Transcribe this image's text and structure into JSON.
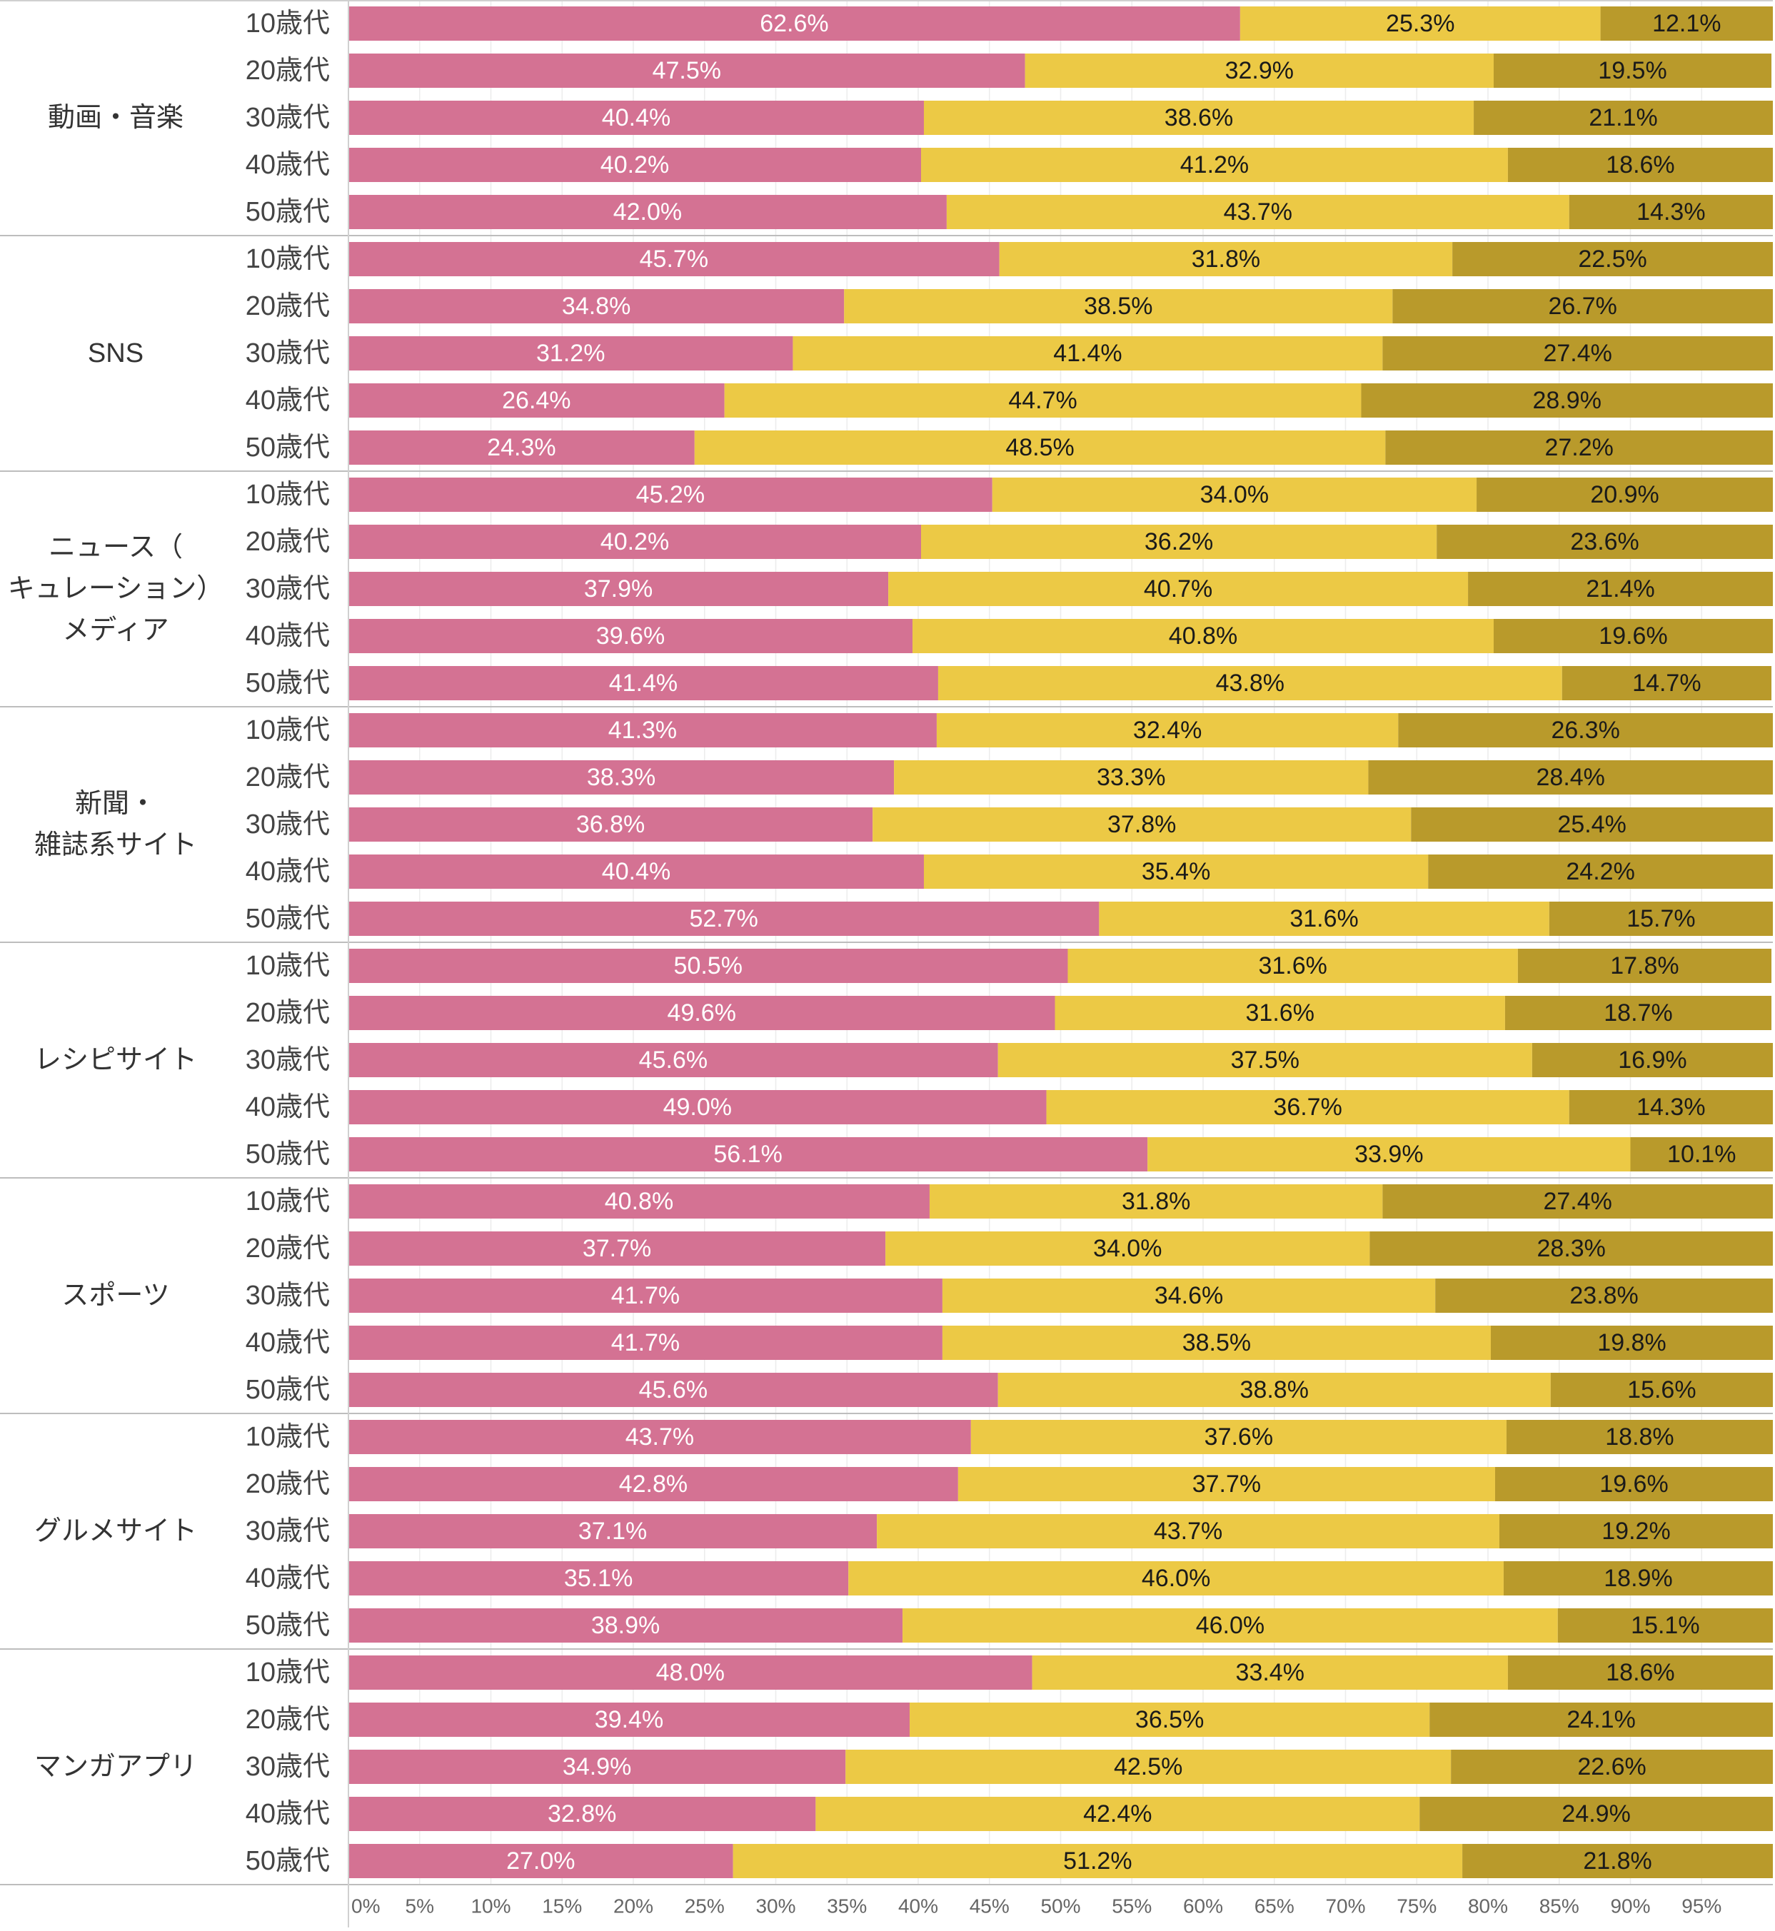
{
  "chart_data": {
    "type": "bar",
    "orientation": "horizontal",
    "stacked": true,
    "x_tick_labels": [
      "0%",
      "5%",
      "10%",
      "15%",
      "20%",
      "25%",
      "30%",
      "35%",
      "40%",
      "45%",
      "50%",
      "55%",
      "60%",
      "65%",
      "70%",
      "75%",
      "80%",
      "85%",
      "90%",
      "95%"
    ],
    "xlim": [
      0,
      100
    ],
    "colors": [
      "#d47293",
      "#ecc945",
      "#b99a2b"
    ],
    "label_colors": [
      "#ffffff",
      "#1a1a1a",
      "#1a1a1a"
    ],
    "groups": [
      {
        "label": "動画・音楽",
        "rows": [
          {
            "age": "10歳代",
            "values": [
              62.6,
              25.3,
              12.1
            ],
            "labels": [
              "62.6%",
              "25.3%",
              "12.1%"
            ]
          },
          {
            "age": "20歳代",
            "values": [
              47.5,
              32.9,
              19.5
            ],
            "labels": [
              "47.5%",
              "32.9%",
              "19.5%"
            ]
          },
          {
            "age": "30歳代",
            "values": [
              40.4,
              38.6,
              21.1
            ],
            "labels": [
              "40.4%",
              "38.6%",
              "21.1%"
            ]
          },
          {
            "age": "40歳代",
            "values": [
              40.2,
              41.2,
              18.6
            ],
            "labels": [
              "40.2%",
              "41.2%",
              "18.6%"
            ]
          },
          {
            "age": "50歳代",
            "values": [
              42.0,
              43.7,
              14.3
            ],
            "labels": [
              "42.0%",
              "43.7%",
              "14.3%"
            ]
          }
        ]
      },
      {
        "label": "SNS",
        "rows": [
          {
            "age": "10歳代",
            "values": [
              45.7,
              31.8,
              22.5
            ],
            "labels": [
              "45.7%",
              "31.8%",
              "22.5%"
            ]
          },
          {
            "age": "20歳代",
            "values": [
              34.8,
              38.5,
              26.7
            ],
            "labels": [
              "34.8%",
              "38.5%",
              "26.7%"
            ]
          },
          {
            "age": "30歳代",
            "values": [
              31.2,
              41.4,
              27.4
            ],
            "labels": [
              "31.2%",
              "41.4%",
              "27.4%"
            ]
          },
          {
            "age": "40歳代",
            "values": [
              26.4,
              44.7,
              28.9
            ],
            "labels": [
              "26.4%",
              "44.7%",
              "28.9%"
            ]
          },
          {
            "age": "50歳代",
            "values": [
              24.3,
              48.5,
              27.2
            ],
            "labels": [
              "24.3%",
              "48.5%",
              "27.2%"
            ]
          }
        ]
      },
      {
        "label": "ニュース（\nキュレーション）\nメディア",
        "rows": [
          {
            "age": "10歳代",
            "values": [
              45.2,
              34.0,
              20.9
            ],
            "labels": [
              "45.2%",
              "34.0%",
              "20.9%"
            ]
          },
          {
            "age": "20歳代",
            "values": [
              40.2,
              36.2,
              23.6
            ],
            "labels": [
              "40.2%",
              "36.2%",
              "23.6%"
            ]
          },
          {
            "age": "30歳代",
            "values": [
              37.9,
              40.7,
              21.4
            ],
            "labels": [
              "37.9%",
              "40.7%",
              "21.4%"
            ]
          },
          {
            "age": "40歳代",
            "values": [
              39.6,
              40.8,
              19.6
            ],
            "labels": [
              "39.6%",
              "40.8%",
              "19.6%"
            ]
          },
          {
            "age": "50歳代",
            "values": [
              41.4,
              43.8,
              14.7
            ],
            "labels": [
              "41.4%",
              "43.8%",
              "14.7%"
            ]
          }
        ]
      },
      {
        "label": "新聞・\n雑誌系サイト",
        "rows": [
          {
            "age": "10歳代",
            "values": [
              41.3,
              32.4,
              26.3
            ],
            "labels": [
              "41.3%",
              "32.4%",
              "26.3%"
            ]
          },
          {
            "age": "20歳代",
            "values": [
              38.3,
              33.3,
              28.4
            ],
            "labels": [
              "38.3%",
              "33.3%",
              "28.4%"
            ]
          },
          {
            "age": "30歳代",
            "values": [
              36.8,
              37.8,
              25.4
            ],
            "labels": [
              "36.8%",
              "37.8%",
              "25.4%"
            ]
          },
          {
            "age": "40歳代",
            "values": [
              40.4,
              35.4,
              24.2
            ],
            "labels": [
              "40.4%",
              "35.4%",
              "24.2%"
            ]
          },
          {
            "age": "50歳代",
            "values": [
              52.7,
              31.6,
              15.7
            ],
            "labels": [
              "52.7%",
              "31.6%",
              "15.7%"
            ]
          }
        ]
      },
      {
        "label": "レシピサイト",
        "rows": [
          {
            "age": "10歳代",
            "values": [
              50.5,
              31.6,
              17.8
            ],
            "labels": [
              "50.5%",
              "31.6%",
              "17.8%"
            ]
          },
          {
            "age": "20歳代",
            "values": [
              49.6,
              31.6,
              18.7
            ],
            "labels": [
              "49.6%",
              "31.6%",
              "18.7%"
            ]
          },
          {
            "age": "30歳代",
            "values": [
              45.6,
              37.5,
              16.9
            ],
            "labels": [
              "45.6%",
              "37.5%",
              "16.9%"
            ]
          },
          {
            "age": "40歳代",
            "values": [
              49.0,
              36.7,
              14.3
            ],
            "labels": [
              "49.0%",
              "36.7%",
              "14.3%"
            ]
          },
          {
            "age": "50歳代",
            "values": [
              56.1,
              33.9,
              10.1
            ],
            "labels": [
              "56.1%",
              "33.9%",
              "10.1%"
            ]
          }
        ]
      },
      {
        "label": "スポーツ",
        "rows": [
          {
            "age": "10歳代",
            "values": [
              40.8,
              31.8,
              27.4
            ],
            "labels": [
              "40.8%",
              "31.8%",
              "27.4%"
            ]
          },
          {
            "age": "20歳代",
            "values": [
              37.7,
              34.0,
              28.3
            ],
            "labels": [
              "37.7%",
              "34.0%",
              "28.3%"
            ]
          },
          {
            "age": "30歳代",
            "values": [
              41.7,
              34.6,
              23.8
            ],
            "labels": [
              "41.7%",
              "34.6%",
              "23.8%"
            ]
          },
          {
            "age": "40歳代",
            "values": [
              41.7,
              38.5,
              19.8
            ],
            "labels": [
              "41.7%",
              "38.5%",
              "19.8%"
            ]
          },
          {
            "age": "50歳代",
            "values": [
              45.6,
              38.8,
              15.6
            ],
            "labels": [
              "45.6%",
              "38.8%",
              "15.6%"
            ]
          }
        ]
      },
      {
        "label": "グルメサイト",
        "rows": [
          {
            "age": "10歳代",
            "values": [
              43.7,
              37.6,
              18.8
            ],
            "labels": [
              "43.7%",
              "37.6%",
              "18.8%"
            ]
          },
          {
            "age": "20歳代",
            "values": [
              42.8,
              37.7,
              19.6
            ],
            "labels": [
              "42.8%",
              "37.7%",
              "19.6%"
            ]
          },
          {
            "age": "30歳代",
            "values": [
              37.1,
              43.7,
              19.2
            ],
            "labels": [
              "37.1%",
              "43.7%",
              "19.2%"
            ]
          },
          {
            "age": "40歳代",
            "values": [
              35.1,
              46.0,
              18.9
            ],
            "labels": [
              "35.1%",
              "46.0%",
              "18.9%"
            ]
          },
          {
            "age": "50歳代",
            "values": [
              38.9,
              46.0,
              15.1
            ],
            "labels": [
              "38.9%",
              "46.0%",
              "15.1%"
            ]
          }
        ]
      },
      {
        "label": "マンガアプリ",
        "rows": [
          {
            "age": "10歳代",
            "values": [
              48.0,
              33.4,
              18.6
            ],
            "labels": [
              "48.0%",
              "33.4%",
              "18.6%"
            ]
          },
          {
            "age": "20歳代",
            "values": [
              39.4,
              36.5,
              24.1
            ],
            "labels": [
              "39.4%",
              "36.5%",
              "24.1%"
            ]
          },
          {
            "age": "30歳代",
            "values": [
              34.9,
              42.5,
              22.6
            ],
            "labels": [
              "34.9%",
              "42.5%",
              "22.6%"
            ]
          },
          {
            "age": "40歳代",
            "values": [
              32.8,
              42.4,
              24.9
            ],
            "labels": [
              "32.8%",
              "42.4%",
              "24.9%"
            ]
          },
          {
            "age": "50歳代",
            "values": [
              27.0,
              51.2,
              21.8
            ],
            "labels": [
              "27.0%",
              "51.2%",
              "21.8%"
            ]
          }
        ]
      }
    ]
  }
}
